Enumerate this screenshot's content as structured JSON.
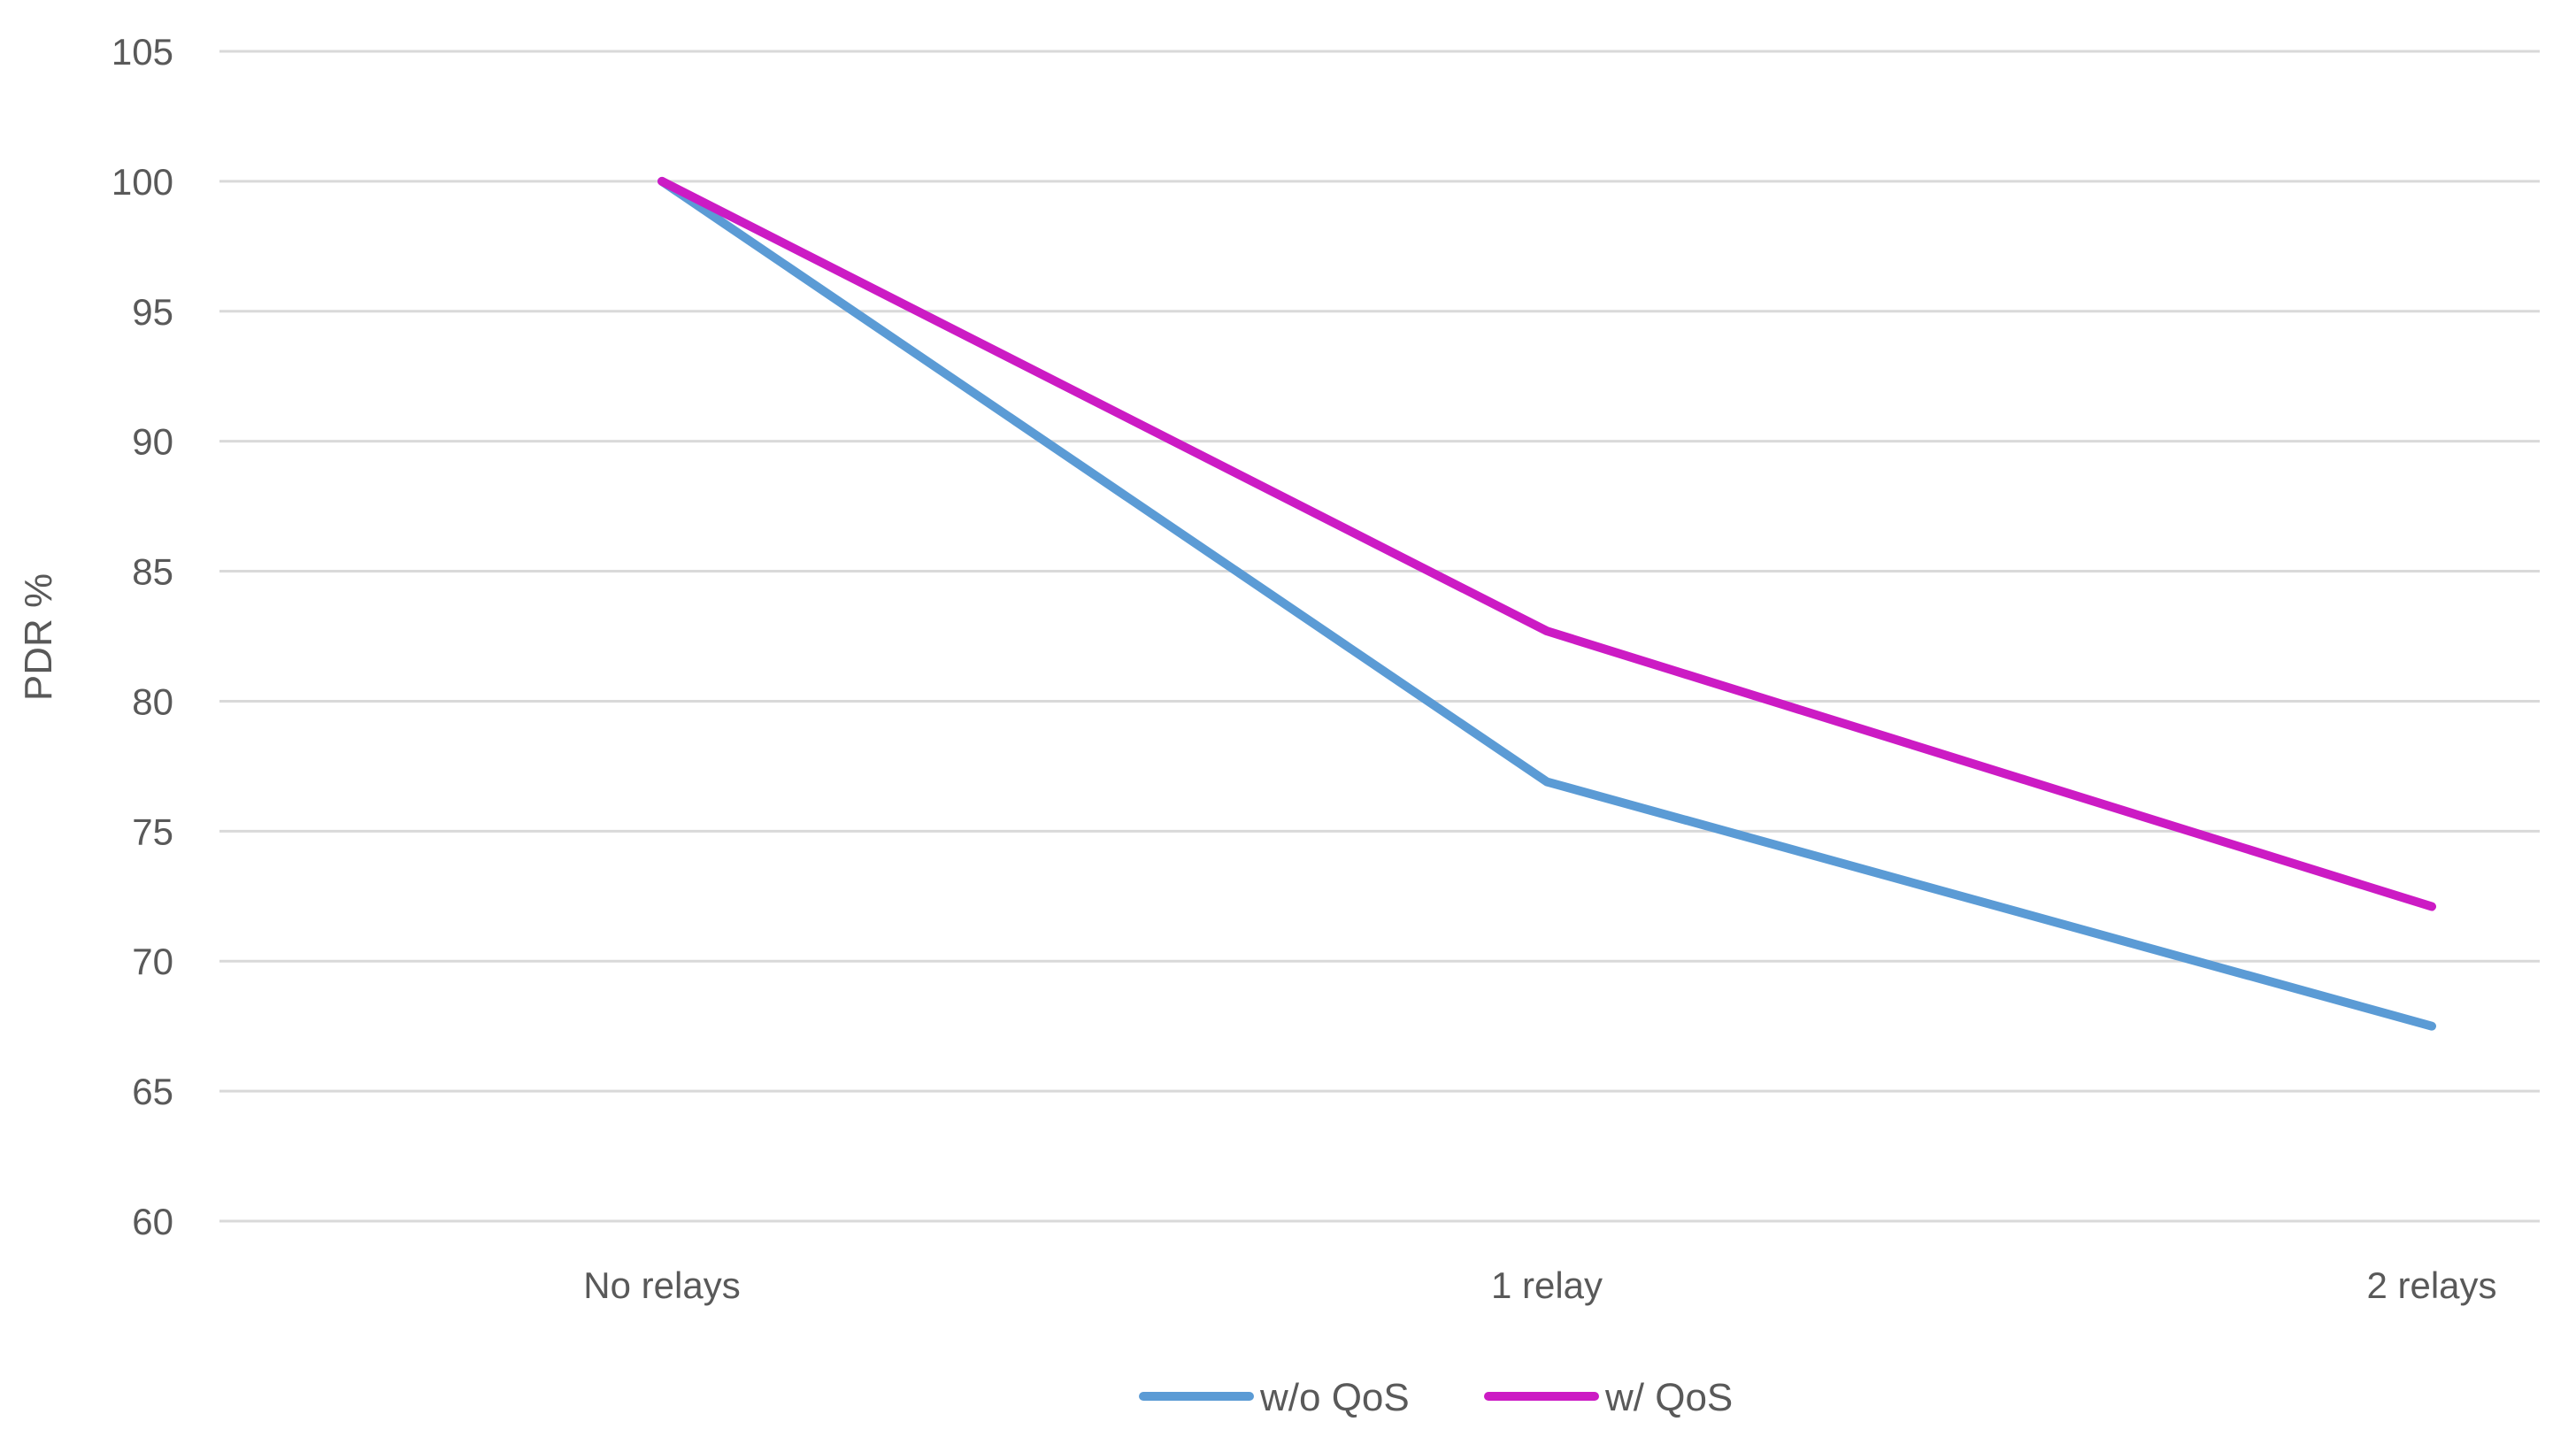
{
  "chart_data": {
    "type": "line",
    "title": "",
    "xlabel": "",
    "ylabel": "PDR %",
    "categories": [
      "No relays",
      "1 relay",
      "2 relays"
    ],
    "ylim": [
      60,
      105
    ],
    "yticks": [
      60,
      65,
      70,
      75,
      80,
      85,
      90,
      95,
      100,
      105
    ],
    "grid": true,
    "legend_position": "bottom",
    "series": [
      {
        "name": "w/o QoS",
        "color": "#5b9bd5",
        "values": [
          100,
          76.9,
          67.5
        ]
      },
      {
        "name": "w/ QoS",
        "color": "#cc1bc4",
        "values": [
          100,
          82.7,
          72.1
        ]
      }
    ]
  }
}
